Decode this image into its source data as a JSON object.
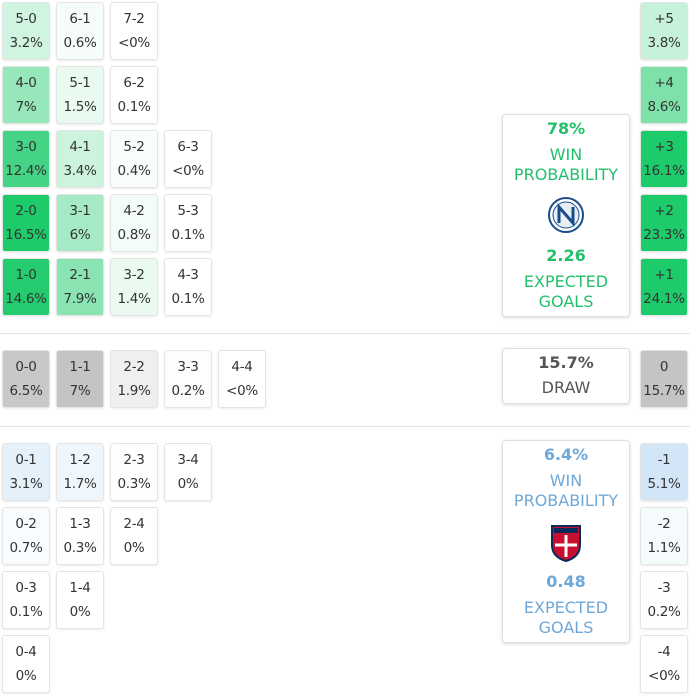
{
  "home": {
    "color": "#1ecb6b",
    "accent": "#22c06a",
    "max": 15,
    "rows": [
      [
        {
          "score": "5-0",
          "pct": "3.2%"
        },
        {
          "score": "6-1",
          "pct": "0.6%"
        },
        {
          "score": "7-2",
          "pct": "<0%"
        }
      ],
      [
        {
          "score": "4-0",
          "pct": "7%"
        },
        {
          "score": "5-1",
          "pct": "1.5%"
        },
        {
          "score": "6-2",
          "pct": "0.1%"
        }
      ],
      [
        {
          "score": "3-0",
          "pct": "12.4%"
        },
        {
          "score": "4-1",
          "pct": "3.4%"
        },
        {
          "score": "5-2",
          "pct": "0.4%"
        },
        {
          "score": "6-3",
          "pct": "<0%"
        }
      ],
      [
        {
          "score": "2-0",
          "pct": "16.5%"
        },
        {
          "score": "3-1",
          "pct": "6%"
        },
        {
          "score": "4-2",
          "pct": "0.8%"
        },
        {
          "score": "5-3",
          "pct": "0.1%"
        }
      ],
      [
        {
          "score": "1-0",
          "pct": "14.6%"
        },
        {
          "score": "2-1",
          "pct": "7.9%"
        },
        {
          "score": "3-2",
          "pct": "1.4%"
        },
        {
          "score": "4-3",
          "pct": "0.1%"
        }
      ]
    ],
    "margins": [
      {
        "score": "+5",
        "pct": "3.8%"
      },
      {
        "score": "+4",
        "pct": "8.6%"
      },
      {
        "score": "+3",
        "pct": "16.1%"
      },
      {
        "score": "+2",
        "pct": "23.3%"
      },
      {
        "score": "+1",
        "pct": "24.1%"
      }
    ],
    "card": {
      "win": "78%",
      "win_label": "WIN PROBABILITY",
      "xg": "2.26",
      "xg_label": "EXPECTED GOALS"
    }
  },
  "draw": {
    "color": "#c4c4c4",
    "accent": "#555555",
    "max": 7,
    "rows": [
      [
        {
          "score": "0-0",
          "pct": "6.5%"
        },
        {
          "score": "1-1",
          "pct": "7%"
        },
        {
          "score": "2-2",
          "pct": "1.9%"
        },
        {
          "score": "3-3",
          "pct": "0.2%"
        },
        {
          "score": "4-4",
          "pct": "<0%"
        }
      ]
    ],
    "margins": [
      {
        "score": "0",
        "pct": "15.7%"
      }
    ],
    "card": {
      "pct": "15.7%",
      "label": "DRAW"
    }
  },
  "away": {
    "color": "#7db5e6",
    "accent": "#6ea8d8",
    "max": 15,
    "rows": [
      [
        {
          "score": "0-1",
          "pct": "3.1%"
        },
        {
          "score": "1-2",
          "pct": "1.7%"
        },
        {
          "score": "2-3",
          "pct": "0.3%"
        },
        {
          "score": "3-4",
          "pct": "0%"
        }
      ],
      [
        {
          "score": "0-2",
          "pct": "0.7%"
        },
        {
          "score": "1-3",
          "pct": "0.3%"
        },
        {
          "score": "2-4",
          "pct": "0%"
        }
      ],
      [
        {
          "score": "0-3",
          "pct": "0.1%"
        },
        {
          "score": "1-4",
          "pct": "0%"
        }
      ],
      [
        {
          "score": "0-4",
          "pct": "0%"
        }
      ]
    ],
    "margins": [
      {
        "score": "-1",
        "pct": "5.1%"
      },
      {
        "score": "-2",
        "pct": "1.1%"
      },
      {
        "score": "-3",
        "pct": "0.2%"
      },
      {
        "score": "-4",
        "pct": "<0%"
      }
    ],
    "card": {
      "win": "6.4%",
      "win_label": "WIN PROBABILITY",
      "xg": "0.48",
      "xg_label": "EXPECTED GOALS"
    }
  }
}
